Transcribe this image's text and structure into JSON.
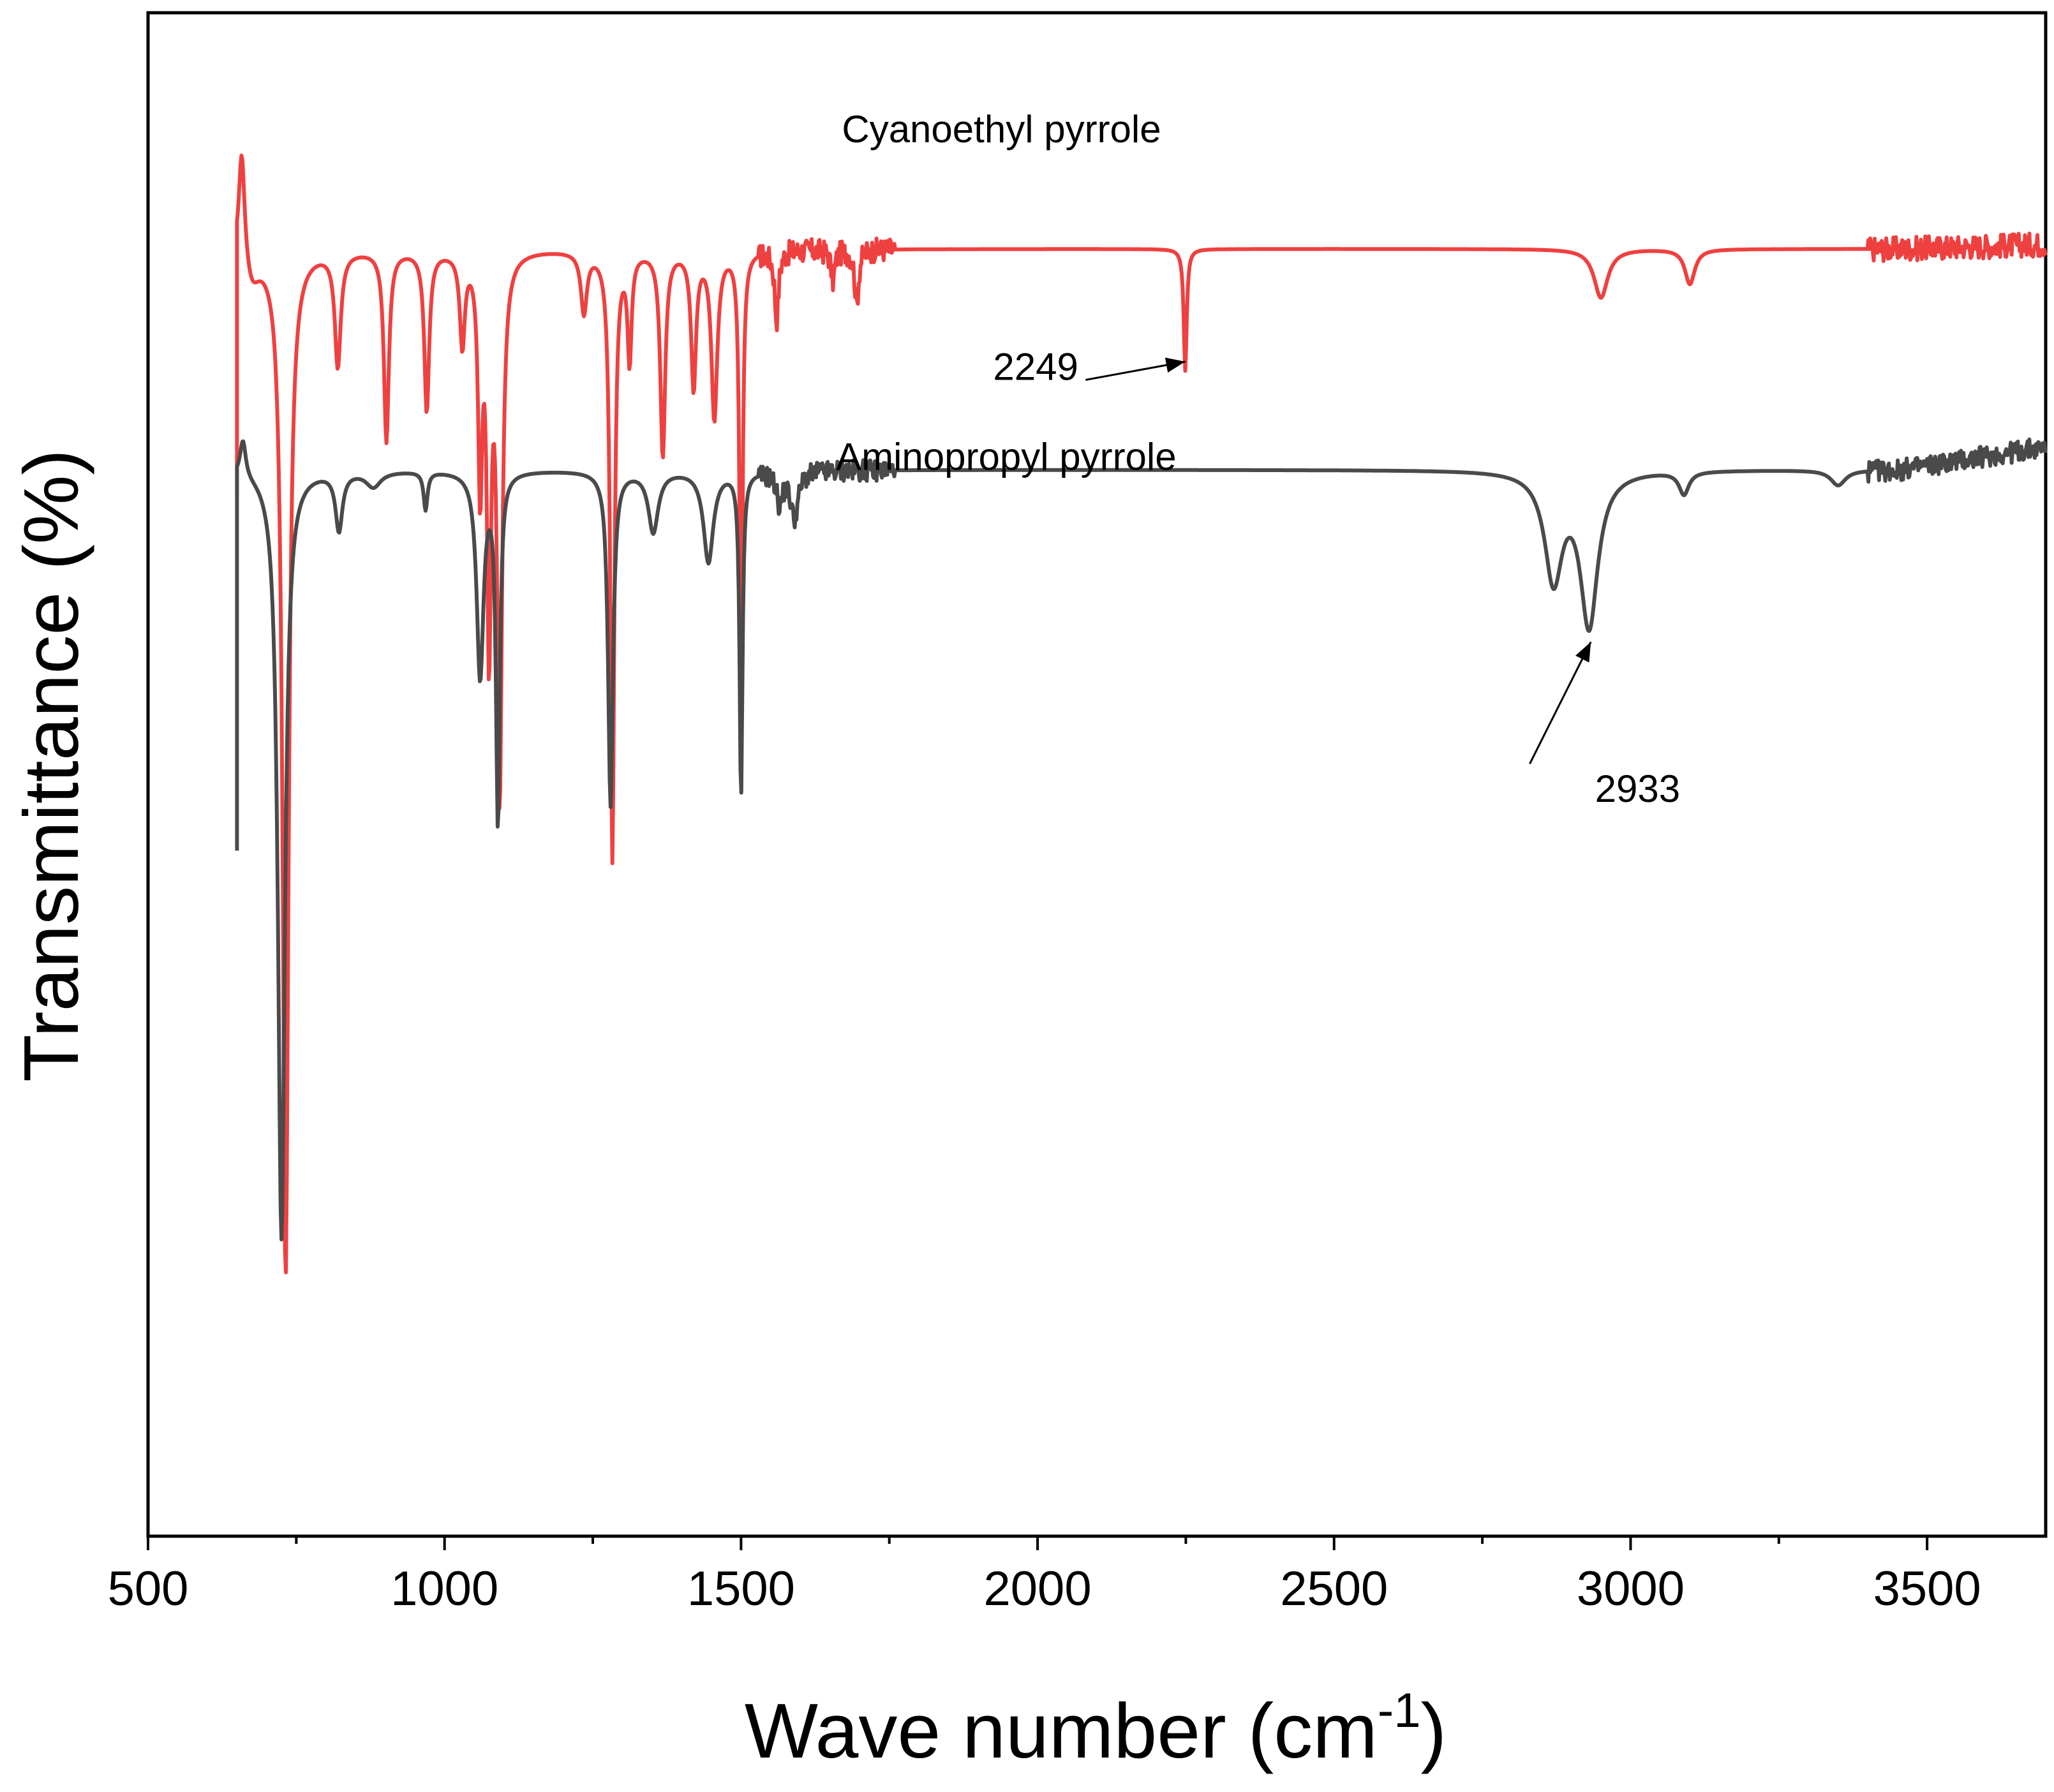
{
  "chart_data": {
    "type": "line",
    "title": "",
    "xlabel": "Wave number (cm",
    "xlabel_superscript": "-1",
    "xlabel_suffix": ")",
    "ylabel": "Transmittance (%)",
    "xlim": [
      500,
      3700
    ],
    "ylim": [
      0,
      100
    ],
    "xticks": [
      500,
      1000,
      1500,
      2000,
      2500,
      3000,
      3500
    ],
    "xtick_labels": [
      "500",
      "1000",
      "1500",
      "2000",
      "2500",
      "3000",
      "3500"
    ],
    "minor_xtick_step": 250,
    "y_tick_labels_shown": false,
    "grid": false,
    "series": [
      {
        "name": "Cyanoethyl pyrrole",
        "color": "#ef4040",
        "baseline": 84.5,
        "start": [
          650,
          68.4
        ],
        "peaks": [
          {
            "x": 658,
            "depth": -7.5,
            "w": 6
          },
          {
            "x": 675,
            "depth": 2.0,
            "w": 15
          },
          {
            "x": 732,
            "depth": 67.5,
            "w": 6
          },
          {
            "x": 820,
            "depth": 7.5,
            "w": 6
          },
          {
            "x": 902,
            "depth": 12.5,
            "w": 5
          },
          {
            "x": 970,
            "depth": 10.5,
            "w": 5
          },
          {
            "x": 1030,
            "depth": 6.0,
            "w": 5
          },
          {
            "x": 1060,
            "depth": 15.0,
            "w": 4
          },
          {
            "x": 1075,
            "depth": 25.0,
            "w": 4
          },
          {
            "x": 1093,
            "depth": 35.5,
            "w": 5
          },
          {
            "x": 1235,
            "depth": 4.0,
            "w": 6
          },
          {
            "x": 1283,
            "depth": 40.0,
            "w": 4
          },
          {
            "x": 1312,
            "depth": 7.0,
            "w": 4
          },
          {
            "x": 1368,
            "depth": 13.5,
            "w": 5
          },
          {
            "x": 1420,
            "depth": 9.0,
            "w": 5
          },
          {
            "x": 1455,
            "depth": 11.0,
            "w": 6
          },
          {
            "x": 1500,
            "depth": 30.0,
            "w": 3
          },
          {
            "x": 1560,
            "depth": 4.5,
            "w": 4
          },
          {
            "x": 1655,
            "depth": 2.0,
            "w": 4
          },
          {
            "x": 1695,
            "depth": 3.5,
            "w": 4
          },
          {
            "x": 2249,
            "depth": 8.0,
            "w": 3
          },
          {
            "x": 2950,
            "depth": 3.2,
            "w": 14
          },
          {
            "x": 3100,
            "depth": 2.3,
            "w": 10
          }
        ]
      },
      {
        "name": "Aminopropyl pyrrole",
        "color": "#4a4a4a",
        "baseline": 70.0,
        "start": [
          650,
          45.0
        ],
        "peaks": [
          {
            "x": 660,
            "depth": -2.5,
            "w": 6
          },
          {
            "x": 725,
            "depth": 50.5,
            "w": 7
          },
          {
            "x": 822,
            "depth": 3.8,
            "w": 7
          },
          {
            "x": 880,
            "depth": 1.0,
            "w": 15
          },
          {
            "x": 968,
            "depth": 2.5,
            "w": 4
          },
          {
            "x": 1060,
            "depth": 13.5,
            "w": 7
          },
          {
            "x": 1090,
            "depth": 23.0,
            "w": 4
          },
          {
            "x": 1280,
            "depth": 22.0,
            "w": 5
          },
          {
            "x": 1352,
            "depth": 4.0,
            "w": 10
          },
          {
            "x": 1445,
            "depth": 6.0,
            "w": 10
          },
          {
            "x": 1500,
            "depth": 21.5,
            "w": 3
          },
          {
            "x": 1565,
            "depth": 2.0,
            "w": 6
          },
          {
            "x": 1590,
            "depth": 3.0,
            "w": 8
          },
          {
            "x": 2870,
            "depth": 7.0,
            "w": 18
          },
          {
            "x": 2930,
            "depth": 10.0,
            "w": 18
          },
          {
            "x": 3090,
            "depth": 1.5,
            "w": 10
          },
          {
            "x": 3350,
            "depth": 1.0,
            "w": 15
          }
        ]
      }
    ],
    "annotations": [
      {
        "text": "Cyanoethyl pyrrole",
        "x": 1670,
        "y": 91.5
      },
      {
        "text": "2249",
        "x": 1925,
        "y": 75.9,
        "arrow_to": [
          2249,
          77.1
        ],
        "arrow_from": [
          2081,
          75.9
        ]
      },
      {
        "text": "Aminopropyl pyrrole",
        "x": 1660,
        "y": 70.0
      },
      {
        "text": "2933",
        "x": 2940,
        "y": 48.2,
        "arrow_to": [
          2933,
          58.7
        ],
        "arrow_from": [
          2830,
          50.7
        ]
      }
    ]
  }
}
